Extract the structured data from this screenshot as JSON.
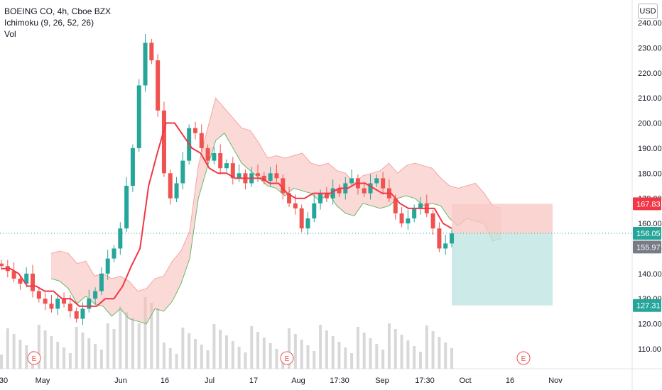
{
  "header": {
    "title": "BOEING CO, 4h, Cboe BZX",
    "indicator": "Ichimoku (9, 26, 52, 26)",
    "volume": "Vol",
    "currency": "USD"
  },
  "colors": {
    "bull": "#26a69a",
    "bear": "#ef5350",
    "tenkan": "#f23645",
    "kijun": "#ef5350",
    "cloud_red": "#f7b9b6",
    "cloud_green": "#b8e0c2",
    "profit_zone": "#bfe5e1",
    "loss_zone": "#f9c9c6",
    "volume": "#d8d8d8",
    "price_line": "#26a69a",
    "earnings": "#ef5350"
  },
  "chart_data": {
    "type": "candlestick",
    "y_axis": {
      "ticks": [
        "240.00",
        "230.00",
        "220.00",
        "210.00",
        "200.00",
        "190.00",
        "180.00",
        "170.00",
        "160.00",
        "150.00",
        "140.00",
        "130.00",
        "120.00",
        "110.00"
      ],
      "values": [
        240,
        230,
        220,
        210,
        200,
        190,
        180,
        170,
        160,
        150,
        140,
        130,
        120,
        110
      ],
      "range": [
        103,
        243
      ]
    },
    "x_axis": {
      "ticks": [
        "30",
        "May",
        "Jun",
        "16",
        "Jul",
        "17",
        "Aug",
        "17:30",
        "Sep",
        "17:30",
        "Oct",
        "16",
        "Nov"
      ]
    },
    "price_labels": [
      {
        "value": "167.83",
        "kind": "stop",
        "price": 167.83
      },
      {
        "value": "156.05",
        "kind": "current",
        "price": 156.05
      },
      {
        "value": "155.97",
        "kind": "last",
        "price": 155.97
      },
      {
        "value": "127.31",
        "kind": "target",
        "price": 127.31
      }
    ],
    "earnings_markers": [
      "E",
      "E",
      "E"
    ],
    "close_series": [
      143,
      141,
      138,
      136,
      140,
      133,
      130,
      128,
      126,
      130,
      128,
      125,
      122,
      126,
      130,
      133,
      140,
      146,
      150,
      158,
      175,
      190,
      215,
      232,
      225,
      205,
      180,
      170,
      176,
      185,
      198,
      196,
      190,
      185,
      188,
      182,
      184,
      178,
      180,
      176,
      180,
      179,
      177,
      180,
      178,
      172,
      168,
      166,
      158,
      162,
      168,
      172,
      170,
      174,
      172,
      176,
      178,
      174,
      172,
      176,
      178,
      174,
      170,
      164,
      160,
      162,
      166,
      168,
      164,
      158,
      150,
      152,
      156
    ],
    "tenkan_series": [
      142,
      142,
      140,
      135,
      135,
      133,
      133,
      130,
      130,
      127,
      127,
      127,
      130,
      130,
      135,
      143,
      150,
      175,
      188,
      200,
      200,
      195,
      190,
      188,
      182,
      180,
      180,
      178,
      178,
      178,
      178,
      176,
      176,
      172,
      170,
      170,
      172,
      172,
      172,
      174,
      174,
      176,
      176,
      174,
      172,
      172,
      168,
      166,
      166,
      166,
      166,
      160,
      158
    ],
    "position": {
      "stop": 167.83,
      "entry": 156.05,
      "target": 127.31
    }
  }
}
